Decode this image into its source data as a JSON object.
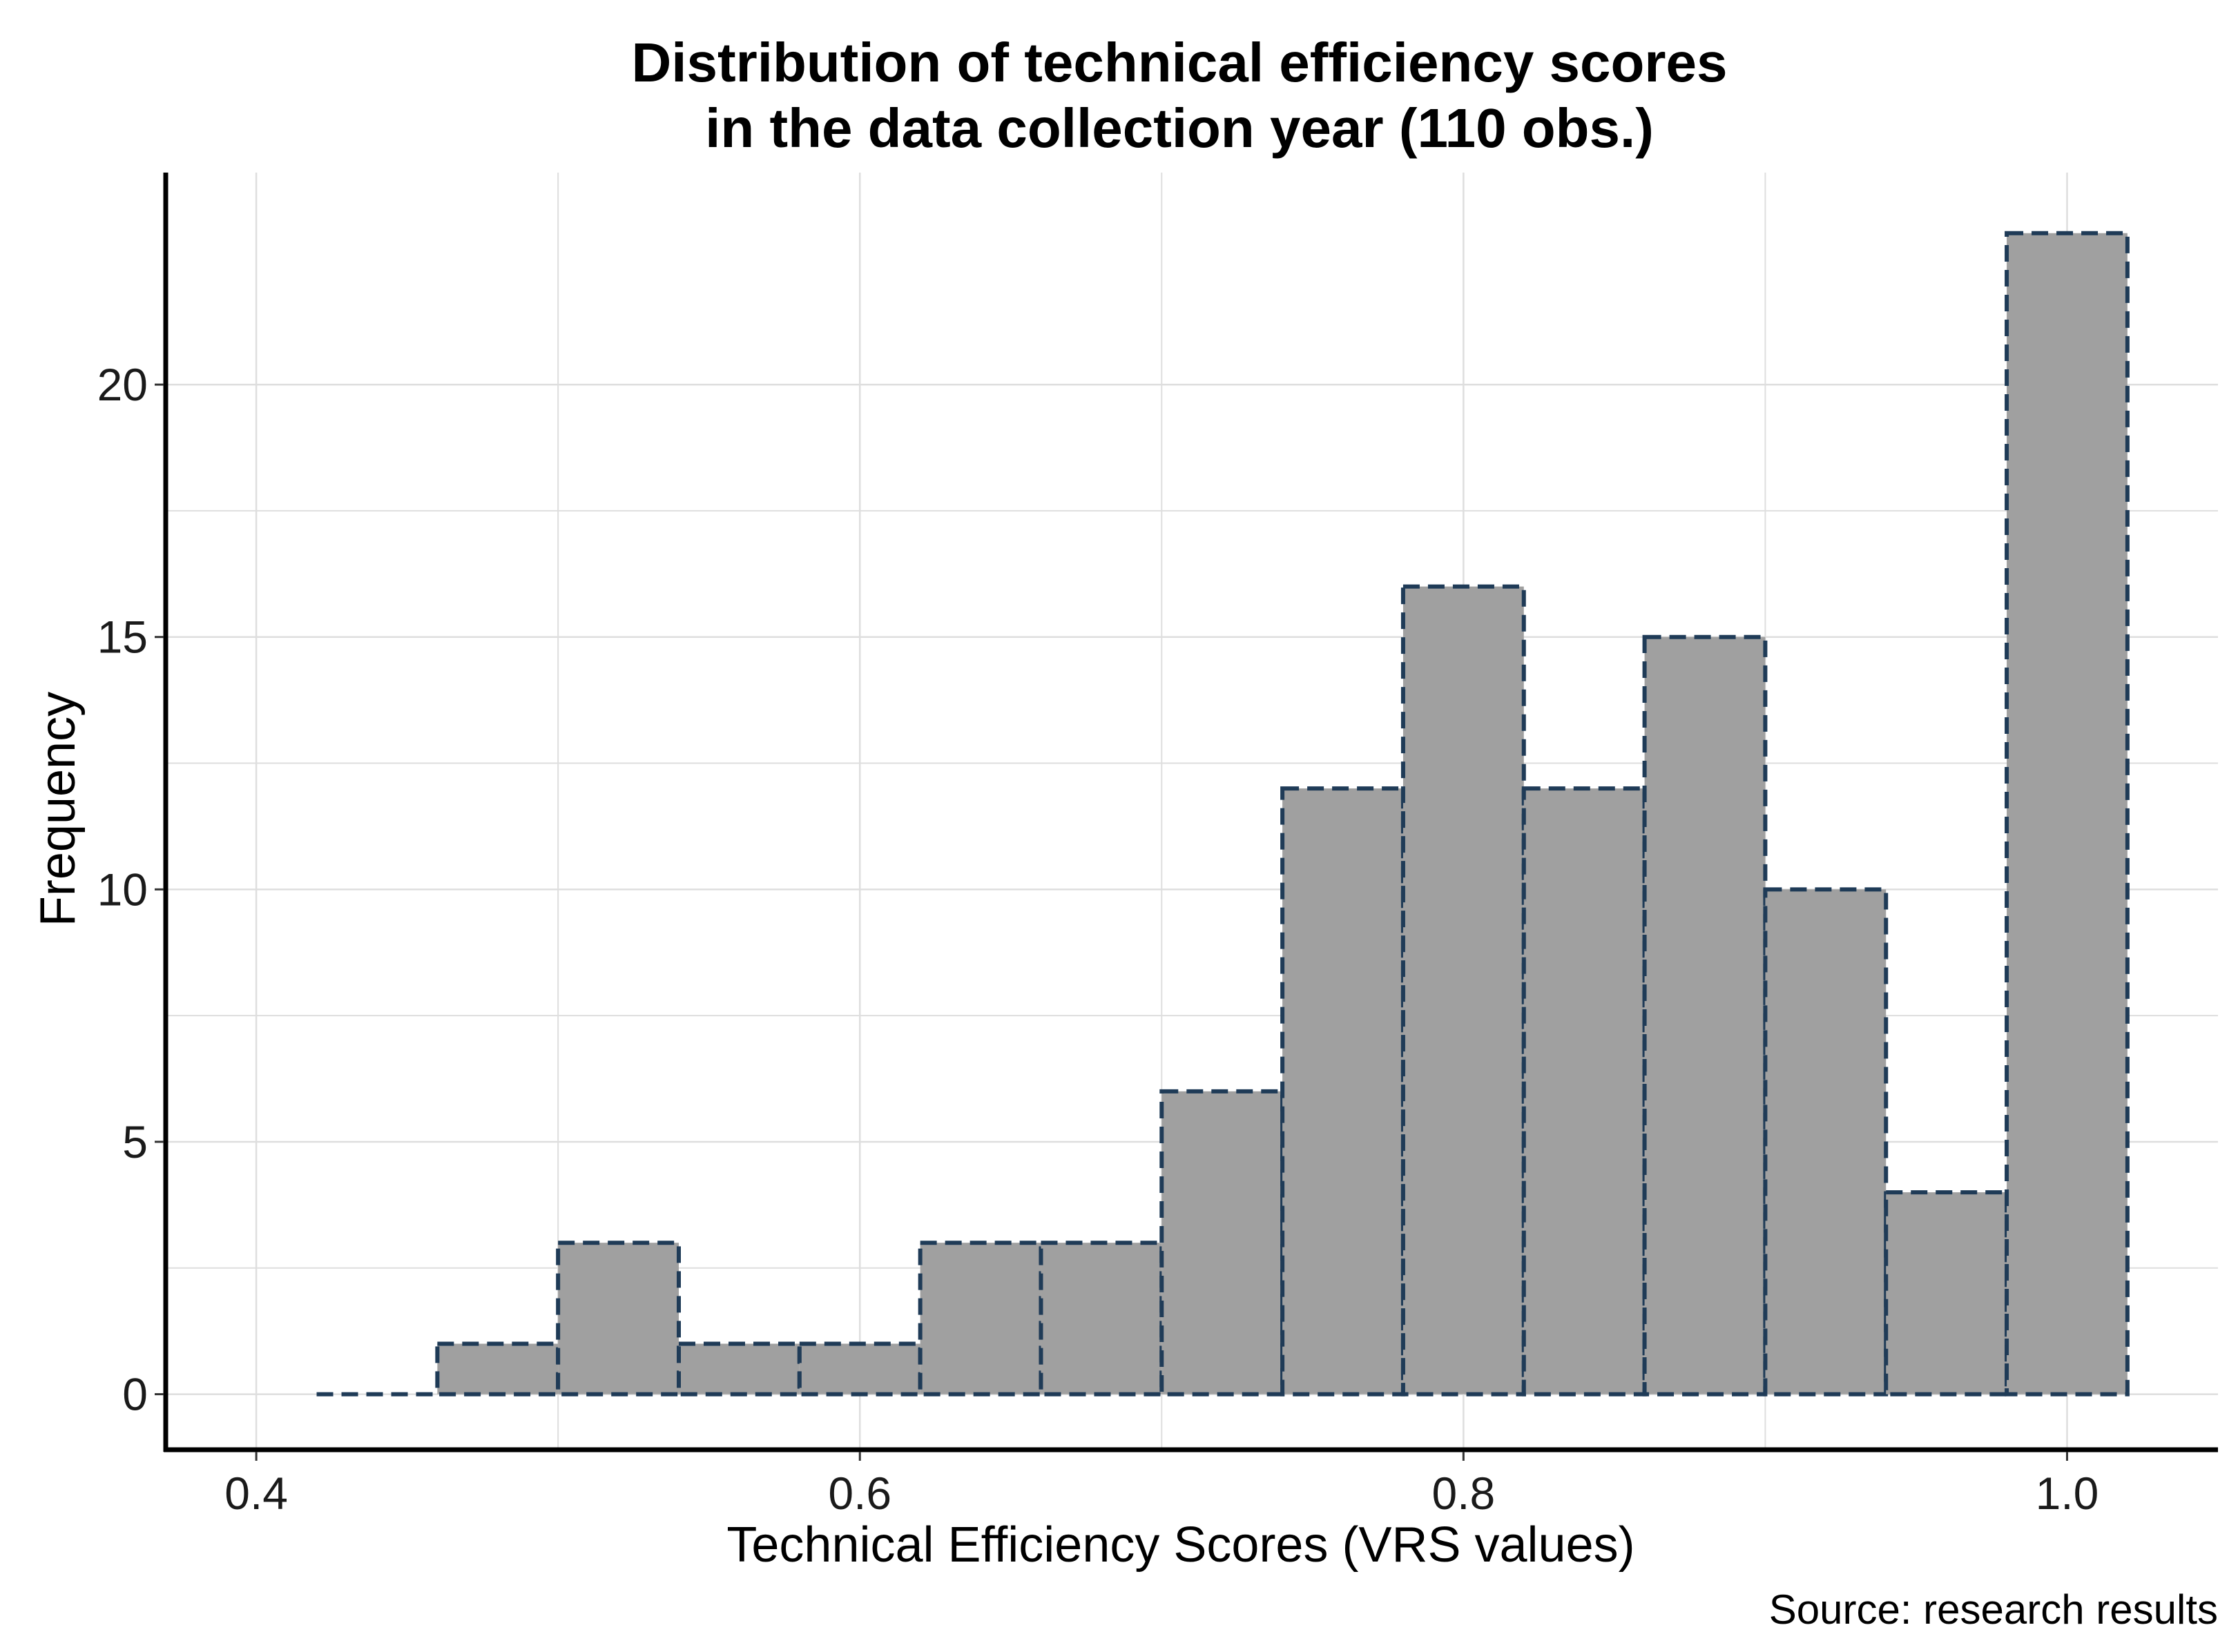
{
  "chart_data": {
    "type": "bar",
    "subtype": "histogram",
    "title_line1": "Distribution of technical efficiency scores",
    "title_line2": "in the data collection year (110 obs.)",
    "xlabel": "Technical Efficiency Scores (VRS values)",
    "ylabel": "Frequency",
    "caption": "Source: research results",
    "xlim": [
      0.37,
      1.05
    ],
    "ylim": [
      -1.1,
      24.2
    ],
    "x_ticks": [
      0.4,
      0.6,
      0.8,
      1.0
    ],
    "x_tick_labels": [
      "0.4",
      "0.6",
      "0.8",
      "1.0"
    ],
    "y_ticks": [
      0,
      5,
      10,
      15,
      20
    ],
    "y_tick_labels": [
      "0",
      "5",
      "10",
      "15",
      "20"
    ],
    "grid": true,
    "bin_edges": [
      0.42,
      0.46,
      0.5,
      0.54,
      0.58,
      0.62,
      0.66,
      0.7,
      0.74,
      0.78,
      0.82,
      0.86,
      0.9,
      0.94,
      0.98,
      1.02
    ],
    "values": [
      0,
      1,
      3,
      1,
      1,
      3,
      3,
      6,
      12,
      16,
      12,
      15,
      10,
      4,
      23
    ],
    "colors": {
      "fill": "#a0a0a0",
      "outline": "#1f3b57",
      "grid": "#dedede",
      "axis": "#000000"
    }
  }
}
